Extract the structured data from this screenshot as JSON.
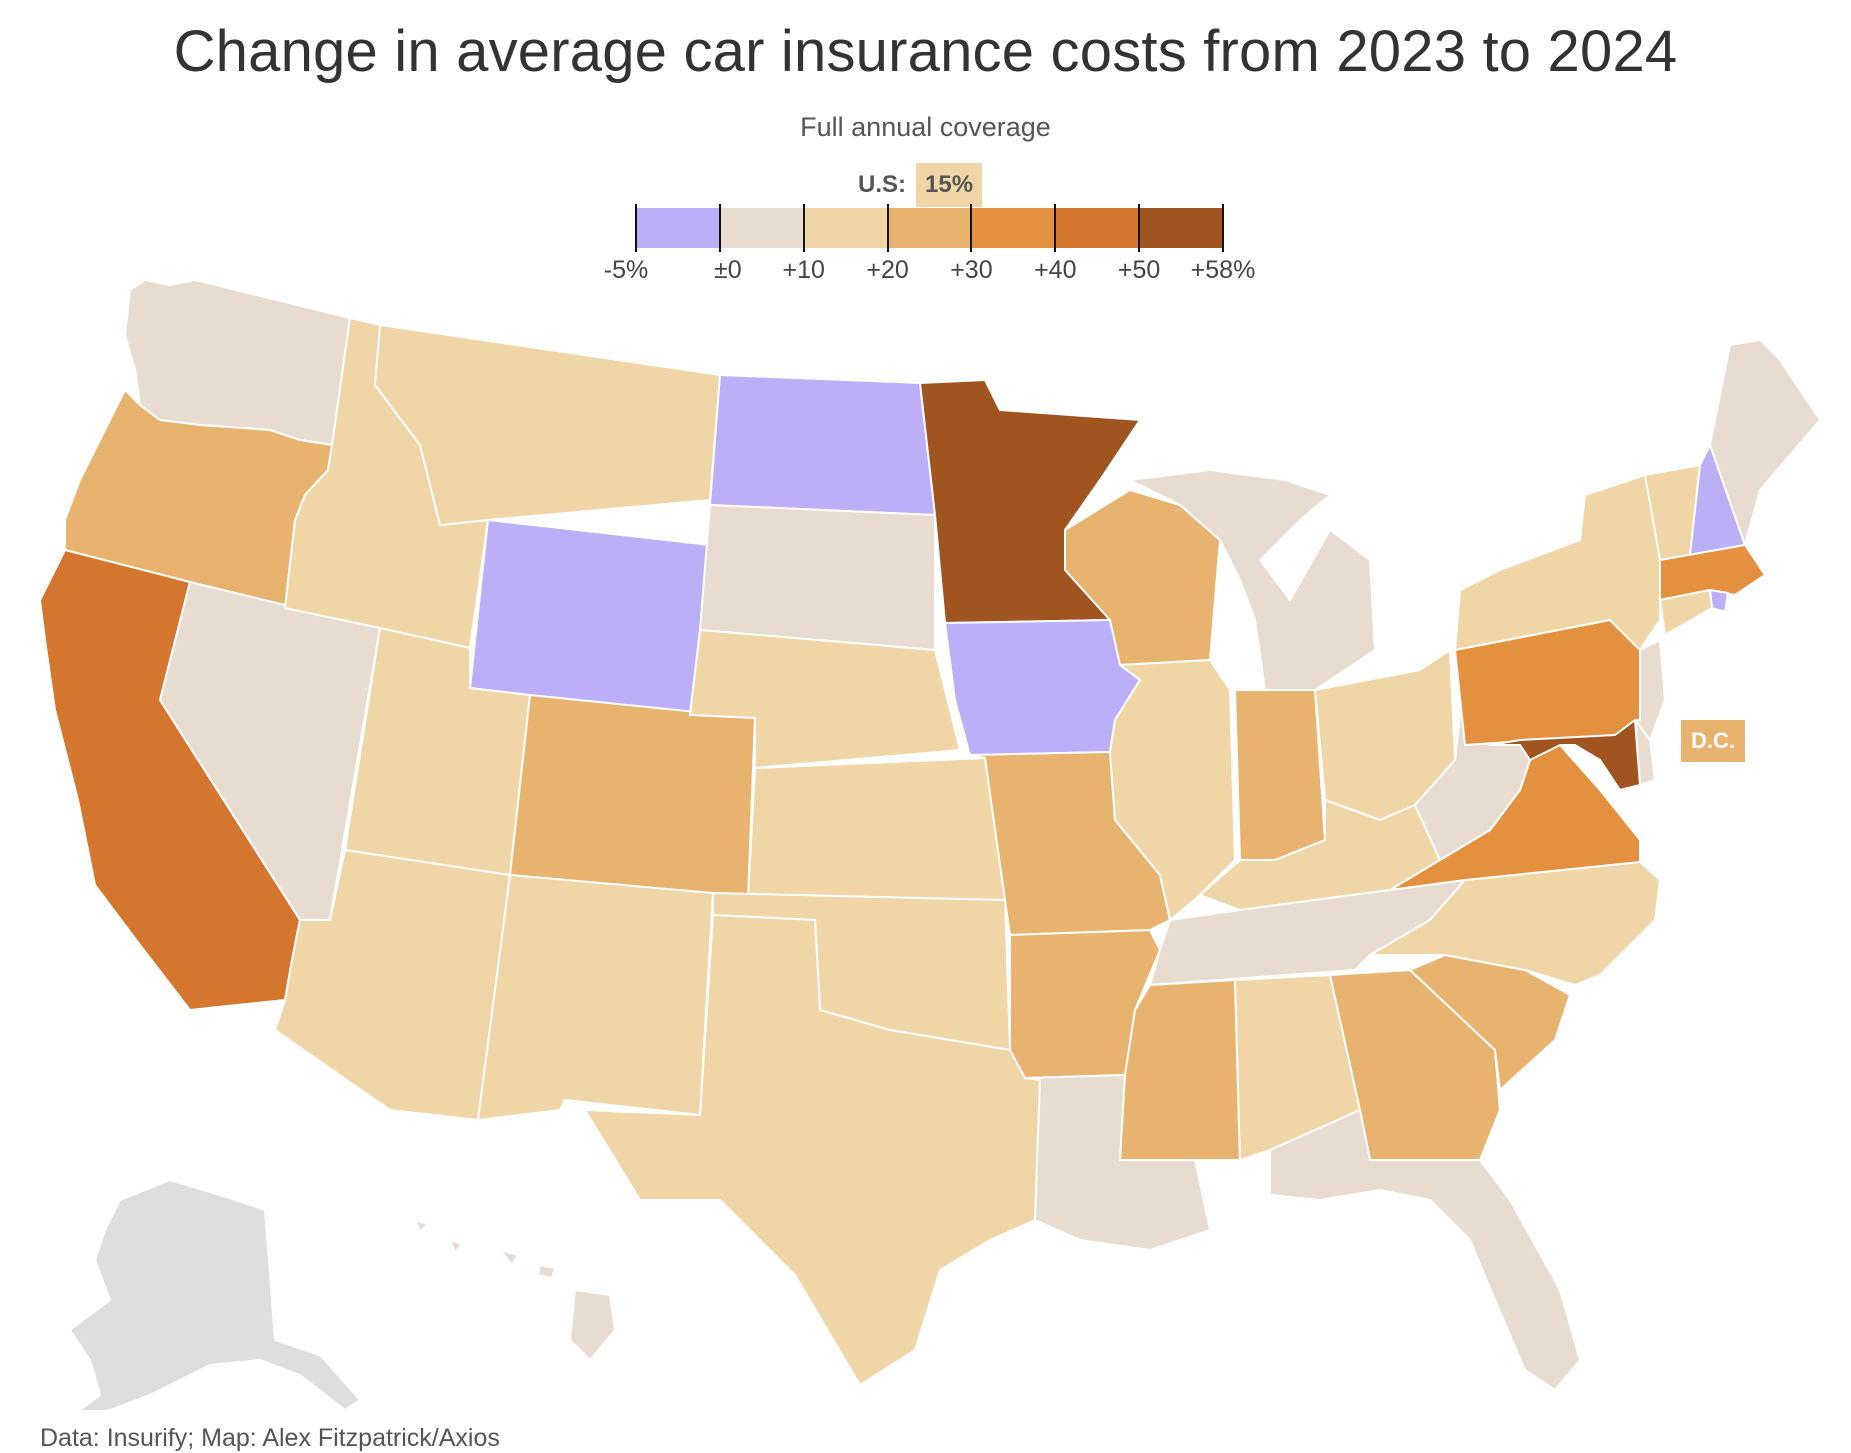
{
  "title": "Change in average car insurance costs from 2023 to 2024",
  "subtitle": "Full annual coverage",
  "us_average": {
    "label": "U.S:",
    "value": "15%"
  },
  "legend": {
    "bins": [
      {
        "from": -5,
        "to": 0,
        "color": "#bcaef7"
      },
      {
        "from": 0,
        "to": 10,
        "color": "#e8dcd1"
      },
      {
        "from": 10,
        "to": 20,
        "color": "#f0d5a6"
      },
      {
        "from": 20,
        "to": 30,
        "color": "#e8b36f"
      },
      {
        "from": 30,
        "to": 40,
        "color": "#e3913f"
      },
      {
        "from": 40,
        "to": 50,
        "color": "#d5762e"
      },
      {
        "from": 50,
        "to": 58,
        "color": "#a0541f"
      }
    ],
    "ticks": [
      {
        "value": -5,
        "label": "-5%"
      },
      {
        "value": 0,
        "label": "±0"
      },
      {
        "value": 10,
        "label": "+10"
      },
      {
        "value": 20,
        "label": "+20"
      },
      {
        "value": 30,
        "label": "+30"
      },
      {
        "value": 40,
        "label": "+40"
      },
      {
        "value": 50,
        "label": "+50"
      },
      {
        "value": 58,
        "label": "+58%"
      }
    ]
  },
  "no_data_color": "#dedede",
  "states": {
    "WA": "0 to +10",
    "OR": "+20 to +30",
    "CA": "+40 to +50",
    "NV": "0 to +10",
    "ID": "+10 to +20",
    "MT": "+10 to +20",
    "WY": "-5 to 0",
    "UT": "+10 to +20",
    "AZ": "+10 to +20",
    "CO": "+20 to +30",
    "NM": "+10 to +20",
    "ND": "-5 to 0",
    "SD": "0 to +10",
    "NE": "+10 to +20",
    "KS": "+10 to +20",
    "OK": "+10 to +20",
    "TX": "+10 to +20",
    "MN": "+50 to +58",
    "IA": "-5 to 0",
    "MO": "+20 to +30",
    "AR": "+20 to +30",
    "LA": "0 to +10",
    "WI": "+20 to +30",
    "IL": "+10 to +20",
    "MI": "0 to +10",
    "IN": "+20 to +30",
    "OH": "+10 to +20",
    "KY": "+10 to +20",
    "TN": "0 to +10",
    "MS": "+20 to +30",
    "AL": "+10 to +20",
    "GA": "+20 to +30",
    "FL": "0 to +10",
    "SC": "+20 to +30",
    "NC": "+10 to +20",
    "VA": "+30 to +40",
    "WV": "0 to +10",
    "PA": "+30 to +40",
    "NY": "+10 to +20",
    "VT": "+10 to +20",
    "NH": "-5 to 0",
    "ME": "0 to +10",
    "MA": "+30 to +40",
    "RI": "-5 to 0",
    "CT": "+10 to +20",
    "NJ": "0 to +10",
    "DE": "0 to +10",
    "MD": "+50 to +58",
    "DC": "+20 to +30",
    "HI": "0 to +10",
    "AK": "no data"
  },
  "dc_label": "D.C.",
  "source": "Data: Insurify; Map: Alex Fitzpatrick/Axios"
}
